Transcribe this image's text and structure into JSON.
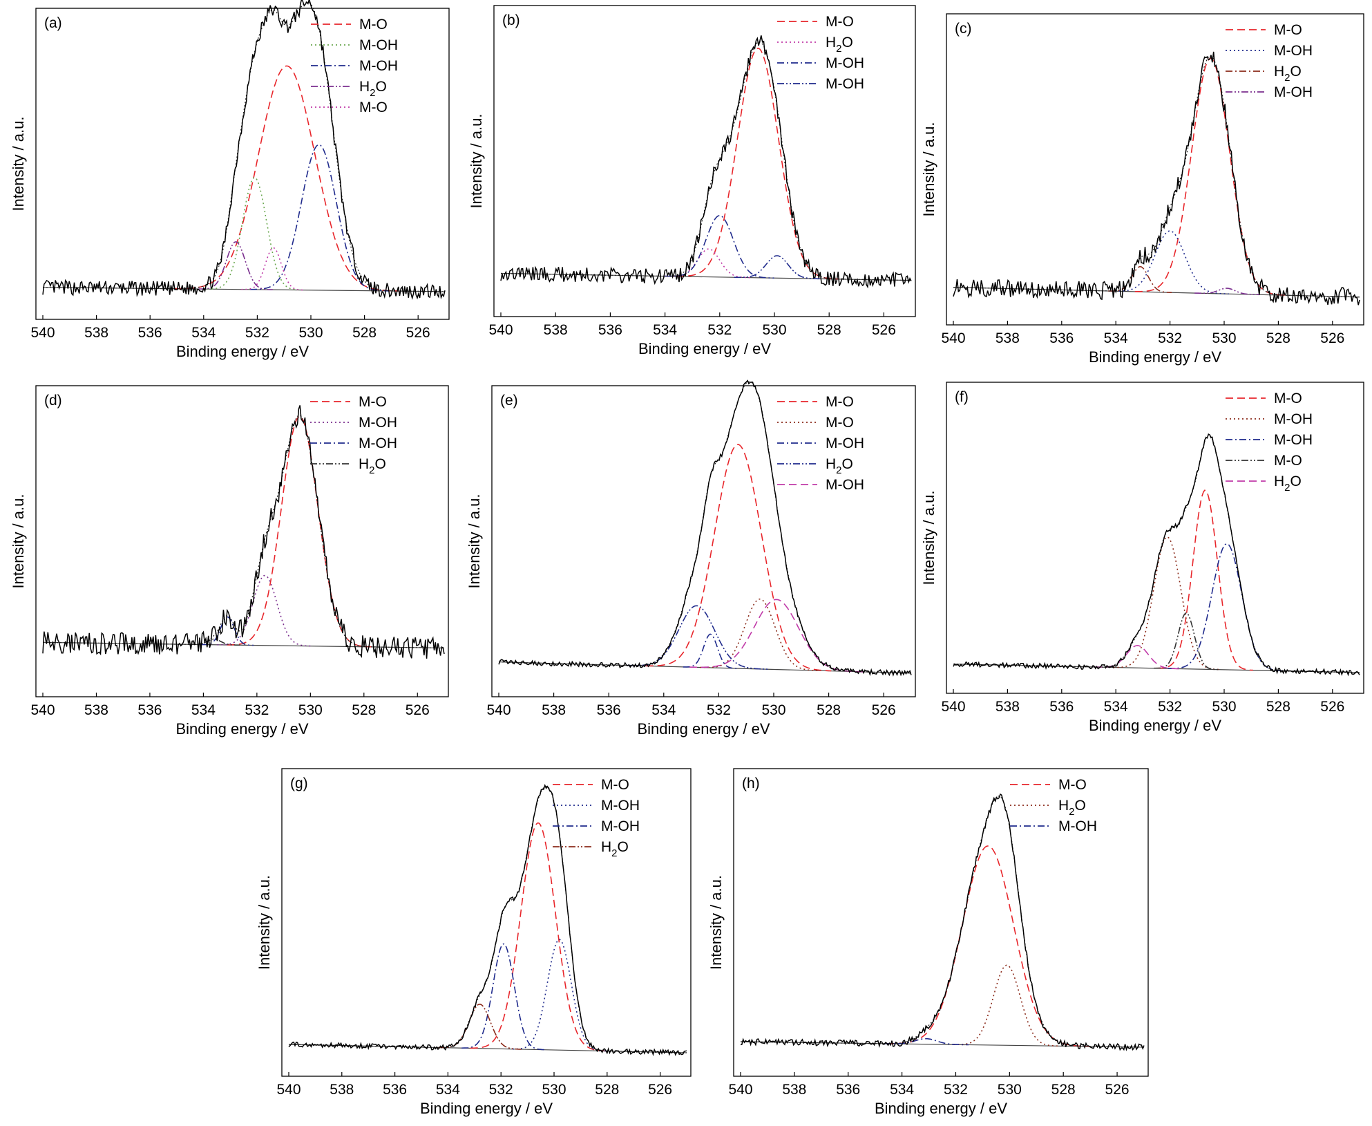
{
  "figure": {
    "xlabel": "Binding energy / eV",
    "ylabel": "Intensity / a.u."
  },
  "colors": {
    "red": "#e8262b",
    "green": "#6aa84f",
    "navy": "#1f2a8c",
    "purple": "#7b2f8f",
    "magenta": "#c03aa8",
    "brown": "#8b2a1a",
    "black": "#000000"
  },
  "chart_data": [
    {
      "type": "line",
      "panel": "(a)",
      "xlim": [
        540,
        525
      ],
      "x_reversed": true,
      "xticks": [
        540,
        538,
        536,
        534,
        532,
        530,
        528,
        526
      ],
      "xlabel": "Binding energy / eV",
      "ylabel": "Intensity / a.u.",
      "baseline": [
        0.06,
        0.045
      ],
      "noise": 0.012,
      "components": [
        {
          "name": "M-O",
          "center": 530.9,
          "height": 0.8,
          "width": 1.05,
          "color": "#e8262b",
          "style": "dashed"
        },
        {
          "name": "M-OH",
          "center": 532.1,
          "height": 0.4,
          "width": 0.45,
          "color": "#6aa84f",
          "style": "dotted"
        },
        {
          "name": "M-OH",
          "center": 529.7,
          "height": 0.52,
          "width": 0.65,
          "color": "#1f2a8c",
          "style": "dashdot"
        },
        {
          "name": "H2O",
          "center": 532.8,
          "height": 0.17,
          "width": 0.35,
          "color": "#7b2f8f",
          "style": "dashdotdot"
        },
        {
          "name": "M-O",
          "center": 531.4,
          "height": 0.15,
          "width": 0.3,
          "color": "#c03aa8",
          "style": "dotted"
        }
      ]
    },
    {
      "type": "line",
      "panel": "(b)",
      "xlim": [
        540,
        525
      ],
      "x_reversed": true,
      "xticks": [
        540,
        538,
        536,
        534,
        532,
        530,
        528,
        526
      ],
      "xlabel": "Binding energy / eV",
      "ylabel": "Intensity / a.u.",
      "baseline": [
        0.1,
        0.075
      ],
      "noise": 0.012,
      "components": [
        {
          "name": "M-O",
          "center": 530.6,
          "height": 0.82,
          "width": 0.75,
          "color": "#e8262b",
          "style": "dashed"
        },
        {
          "name": "H2O",
          "center": 532.4,
          "height": 0.1,
          "width": 0.4,
          "color": "#c03aa8",
          "style": "dotted"
        },
        {
          "name": "M-OH",
          "center": 532.0,
          "height": 0.22,
          "width": 0.5,
          "color": "#1f2a8c",
          "style": "dashdot"
        },
        {
          "name": "M-OH",
          "center": 529.9,
          "height": 0.08,
          "width": 0.4,
          "color": "#1f2a8c",
          "style": "dashdotdot"
        }
      ]
    },
    {
      "type": "line",
      "panel": "(c)",
      "xlim": [
        540,
        525
      ],
      "x_reversed": true,
      "xticks": [
        540,
        538,
        536,
        534,
        532,
        530,
        528,
        526
      ],
      "xlabel": "Binding energy / eV",
      "ylabel": "Intensity / a.u.",
      "baseline": [
        0.08,
        0.045
      ],
      "noise": 0.015,
      "components": [
        {
          "name": "M-O",
          "center": 530.5,
          "height": 0.84,
          "width": 0.7,
          "color": "#e8262b",
          "style": "dashed"
        },
        {
          "name": "M-OH",
          "center": 532.0,
          "height": 0.22,
          "width": 0.55,
          "color": "#1f2a8c",
          "style": "dotted"
        },
        {
          "name": "H2O",
          "center": 533.1,
          "height": 0.09,
          "width": 0.3,
          "color": "#8b2a1a",
          "style": "dashdot"
        },
        {
          "name": "M-OH",
          "center": 529.9,
          "height": 0.02,
          "width": 0.3,
          "color": "#7b2f8f",
          "style": "dashdotdot"
        }
      ]
    },
    {
      "type": "line",
      "panel": "(d)",
      "xlim": [
        540,
        525
      ],
      "x_reversed": true,
      "xticks": [
        540,
        538,
        536,
        534,
        532,
        530,
        528,
        526
      ],
      "xlabel": "Binding energy / eV",
      "ylabel": "Intensity / a.u.",
      "baseline": [
        0.14,
        0.12
      ],
      "noise": 0.018,
      "components": [
        {
          "name": "M-O",
          "center": 530.4,
          "height": 0.82,
          "width": 0.68,
          "color": "#e8262b",
          "style": "dashed"
        },
        {
          "name": "M-OH",
          "center": 531.7,
          "height": 0.25,
          "width": 0.45,
          "color": "#7b2f8f",
          "style": "dotted"
        },
        {
          "name": "M-OH",
          "center": 533.1,
          "height": 0.1,
          "width": 0.25,
          "color": "#1f2a8c",
          "style": "dashdot"
        },
        {
          "name": "H2O",
          "center": 533.6,
          "height": 0.02,
          "width": 0.25,
          "color": "#333333",
          "style": "dashdotdot"
        }
      ]
    },
    {
      "type": "line",
      "panel": "(e)",
      "xlim": [
        540,
        525
      ],
      "x_reversed": true,
      "xticks": [
        540,
        538,
        536,
        534,
        532,
        530,
        528,
        526
      ],
      "xlabel": "Binding energy / eV",
      "ylabel": "Intensity / a.u.",
      "baseline": [
        0.07,
        0.03
      ],
      "noise": 0.004,
      "components": [
        {
          "name": "M-O",
          "center": 531.3,
          "height": 0.8,
          "width": 0.85,
          "color": "#e8262b",
          "style": "dashed"
        },
        {
          "name": "M-O",
          "center": 530.5,
          "height": 0.25,
          "width": 0.55,
          "color": "#8b2a1a",
          "style": "dotted"
        },
        {
          "name": "M-OH",
          "center": 532.3,
          "height": 0.12,
          "width": 0.25,
          "color": "#1f2a8c",
          "style": "dashdot"
        },
        {
          "name": "H2O",
          "center": 532.8,
          "height": 0.22,
          "width": 0.65,
          "color": "#1f2a8c",
          "style": "dashdotdot"
        },
        {
          "name": "M-OH",
          "center": 529.9,
          "height": 0.25,
          "width": 0.8,
          "color": "#c03aa8",
          "style": "dashed"
        }
      ]
    },
    {
      "type": "line",
      "panel": "(f)",
      "xlim": [
        540,
        525
      ],
      "x_reversed": true,
      "xticks": [
        540,
        538,
        536,
        534,
        532,
        530,
        528,
        526
      ],
      "xlabel": "Binding energy / eV",
      "ylabel": "Intensity / a.u.",
      "baseline": [
        0.05,
        0.02
      ],
      "noise": 0.004,
      "components": [
        {
          "name": "M-O",
          "center": 530.7,
          "height": 0.64,
          "width": 0.45,
          "color": "#e8262b",
          "style": "dashed"
        },
        {
          "name": "M-OH",
          "center": 532.1,
          "height": 0.47,
          "width": 0.5,
          "color": "#8b2a1a",
          "style": "dotted"
        },
        {
          "name": "M-OH",
          "center": 529.9,
          "height": 0.45,
          "width": 0.55,
          "color": "#1f2a8c",
          "style": "dashdot"
        },
        {
          "name": "M-O",
          "center": 531.4,
          "height": 0.2,
          "width": 0.3,
          "color": "#333333",
          "style": "dashdotdot"
        },
        {
          "name": "H2O",
          "center": 533.2,
          "height": 0.08,
          "width": 0.4,
          "color": "#c03aa8",
          "style": "dashed"
        }
      ]
    },
    {
      "type": "line",
      "panel": "(g)",
      "xlim": [
        540,
        525
      ],
      "x_reversed": true,
      "xticks": [
        540,
        538,
        536,
        534,
        532,
        530,
        528,
        526
      ],
      "xlabel": "Binding energy / eV",
      "ylabel": "Intensity / a.u.",
      "baseline": [
        0.06,
        0.03
      ],
      "noise": 0.004,
      "components": [
        {
          "name": "M-O",
          "center": 530.6,
          "height": 0.82,
          "width": 0.65,
          "color": "#e8262b",
          "style": "dashed"
        },
        {
          "name": "M-OH",
          "center": 529.8,
          "height": 0.4,
          "width": 0.45,
          "color": "#1f2a8c",
          "style": "dotted"
        },
        {
          "name": "M-OH",
          "center": 531.9,
          "height": 0.38,
          "width": 0.4,
          "color": "#1f2a8c",
          "style": "dashdot"
        },
        {
          "name": "H2O",
          "center": 532.8,
          "height": 0.16,
          "width": 0.4,
          "color": "#8b2a1a",
          "style": "dashdotdot"
        }
      ]
    },
    {
      "type": "line",
      "panel": "(h)",
      "xlim": [
        540,
        525
      ],
      "x_reversed": true,
      "xticks": [
        540,
        538,
        536,
        534,
        532,
        530,
        528,
        526
      ],
      "xlabel": "Binding energy / eV",
      "ylabel": "Intensity / a.u.",
      "baseline": [
        0.07,
        0.05
      ],
      "noise": 0.005,
      "components": [
        {
          "name": "M-O",
          "center": 530.8,
          "height": 0.72,
          "width": 0.95,
          "color": "#e8262b",
          "style": "dashed"
        },
        {
          "name": "H2O",
          "center": 530.1,
          "height": 0.29,
          "width": 0.5,
          "color": "#8b2a1a",
          "style": "dotted"
        },
        {
          "name": "M-OH",
          "center": 533.1,
          "height": 0.02,
          "width": 0.4,
          "color": "#1f2a8c",
          "style": "dashdot"
        }
      ]
    }
  ]
}
